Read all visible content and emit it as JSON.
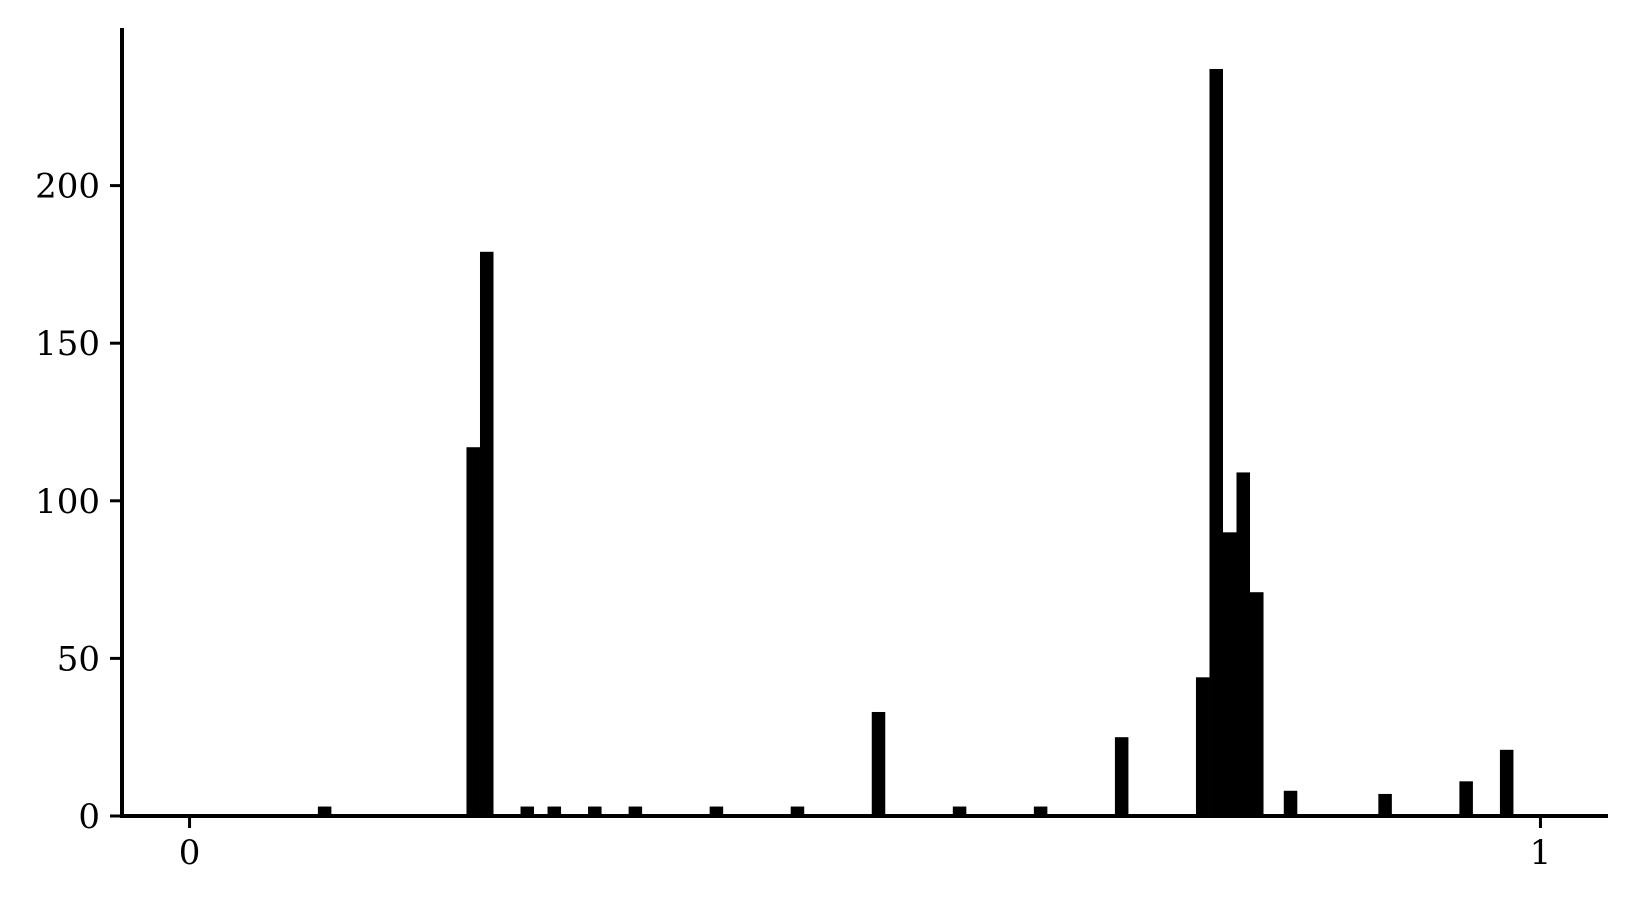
{
  "chart_data": {
    "type": "bar",
    "title": "",
    "xlabel": "",
    "ylabel": "",
    "xlim": [
      -0.05,
      1.05
    ],
    "ylim": [
      0,
      250
    ],
    "grid": false,
    "legend": "none",
    "bar_color": "#000000",
    "bin_width": 0.01,
    "x_ticks": [
      {
        "value": 0,
        "label": "0"
      },
      {
        "value": 1,
        "label": "1"
      }
    ],
    "y_ticks": [
      {
        "value": 0,
        "label": "0"
      },
      {
        "value": 50,
        "label": "50"
      },
      {
        "value": 100,
        "label": "100"
      },
      {
        "value": 150,
        "label": "150"
      },
      {
        "value": 200,
        "label": "200"
      }
    ],
    "bins": [
      {
        "x": 0.1,
        "count": 3
      },
      {
        "x": 0.21,
        "count": 117
      },
      {
        "x": 0.22,
        "count": 179
      },
      {
        "x": 0.25,
        "count": 3
      },
      {
        "x": 0.27,
        "count": 3
      },
      {
        "x": 0.3,
        "count": 3
      },
      {
        "x": 0.33,
        "count": 3
      },
      {
        "x": 0.39,
        "count": 3
      },
      {
        "x": 0.45,
        "count": 3
      },
      {
        "x": 0.51,
        "count": 33
      },
      {
        "x": 0.57,
        "count": 3
      },
      {
        "x": 0.63,
        "count": 3
      },
      {
        "x": 0.69,
        "count": 25
      },
      {
        "x": 0.75,
        "count": 44
      },
      {
        "x": 0.76,
        "count": 237
      },
      {
        "x": 0.77,
        "count": 90
      },
      {
        "x": 0.78,
        "count": 109
      },
      {
        "x": 0.79,
        "count": 71
      },
      {
        "x": 0.815,
        "count": 8
      },
      {
        "x": 0.885,
        "count": 7
      },
      {
        "x": 0.945,
        "count": 11
      },
      {
        "x": 0.975,
        "count": 21
      }
    ]
  }
}
